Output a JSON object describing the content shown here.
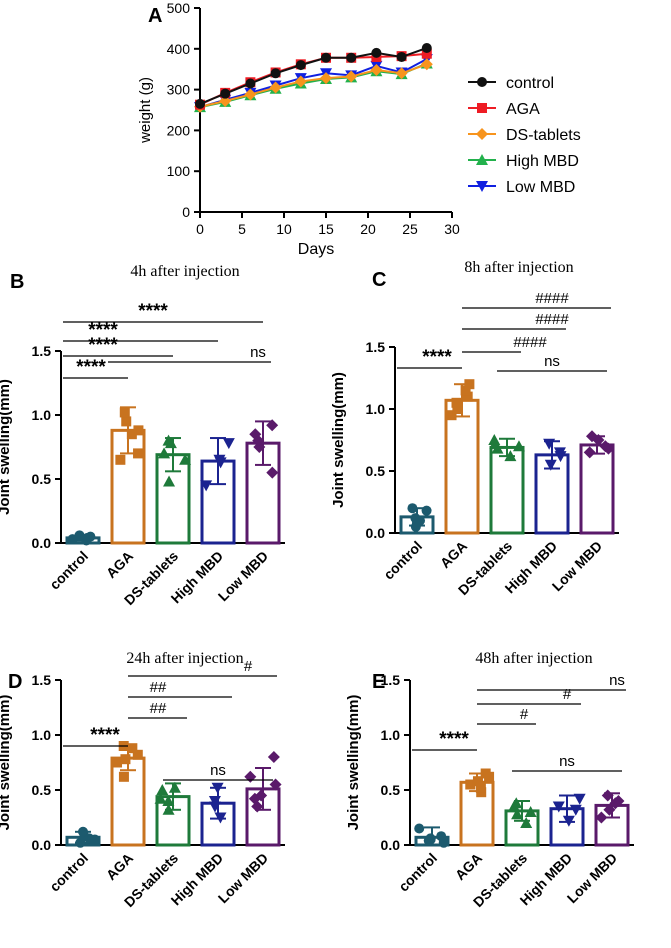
{
  "colors": {
    "control": "#1c5a6e",
    "AGA": "#c8731f",
    "DS-tablets": "#1e7a3a",
    "High MBD": "#1b2390",
    "Low MBD": "#5a1a6a"
  },
  "line_colors": {
    "control": "#111111",
    "AGA": "#ee1c24",
    "DS-tablets": "#f7941d",
    "High MBD": "#22b14c",
    "Low MBD": "#1020e0"
  },
  "chart_data": [
    {
      "panel": "A",
      "type": "line",
      "title": "",
      "xlabel": "Days",
      "ylabel": "weight (g)",
      "xlim": [
        0,
        30
      ],
      "ylim": [
        0,
        500
      ],
      "xticks": [
        0,
        5,
        10,
        15,
        20,
        25,
        30
      ],
      "yticks": [
        0,
        100,
        200,
        300,
        400,
        500
      ],
      "x": [
        0,
        3,
        6,
        9,
        12,
        15,
        18,
        21,
        24,
        27
      ],
      "series": [
        {
          "name": "control",
          "marker": "circle",
          "values": [
            265,
            290,
            315,
            340,
            360,
            378,
            378,
            390,
            380,
            402
          ]
        },
        {
          "name": "AGA",
          "marker": "square",
          "values": [
            263,
            292,
            318,
            342,
            362,
            378,
            378,
            380,
            382,
            388
          ]
        },
        {
          "name": "DS-tablets",
          "marker": "diamond",
          "values": [
            258,
            272,
            288,
            305,
            320,
            328,
            332,
            348,
            340,
            362
          ]
        },
        {
          "name": "High MBD",
          "marker": "triangle-up",
          "values": [
            257,
            270,
            286,
            302,
            315,
            326,
            330,
            345,
            338,
            364
          ]
        },
        {
          "name": "Low MBD",
          "marker": "triangle-down",
          "values": [
            257,
            275,
            292,
            310,
            328,
            340,
            335,
            358,
            342,
            375
          ]
        }
      ],
      "legend": [
        "control",
        "AGA",
        "DS-tablets",
        "High MBD",
        "Low MBD"
      ],
      "legend_position": "right"
    },
    {
      "panel": "B",
      "type": "bar",
      "title": "4h after injection",
      "ylabel": "Joint swelling(mm)",
      "ylim": [
        0,
        1.5
      ],
      "yticks": [
        "0.0",
        "0.5",
        "1.0",
        "1.5"
      ],
      "categories": [
        "control",
        "AGA",
        "DS-tablets",
        "High MBD",
        "Low MBD"
      ],
      "values": [
        0.04,
        0.88,
        0.69,
        0.64,
        0.78
      ],
      "errors": [
        0.02,
        0.18,
        0.13,
        0.18,
        0.17
      ],
      "points": [
        [
          0.02,
          0.03,
          0.04,
          0.05,
          0.06
        ],
        [
          0.65,
          0.7,
          0.88,
          0.95,
          1.02,
          0.85
        ],
        [
          0.48,
          0.65,
          0.78,
          0.7,
          0.8
        ],
        [
          0.45,
          0.63,
          0.78,
          0.65
        ],
        [
          0.55,
          0.75,
          0.85,
          0.92,
          0.8
        ]
      ],
      "comparisons": [
        {
          "from": 0,
          "to": 1,
          "label": "****"
        },
        {
          "from": 0,
          "to": 2,
          "label": "****"
        },
        {
          "from": 0,
          "to": 3,
          "label": "****"
        },
        {
          "from": 0,
          "to": 4,
          "label": "****"
        },
        {
          "from": 1,
          "to": 4,
          "label": "ns",
          "level": 0
        }
      ]
    },
    {
      "panel": "C",
      "type": "bar",
      "title": "8h after injection",
      "ylabel": "Joint swelling(mm)",
      "ylim": [
        0,
        1.5
      ],
      "yticks": [
        "0.0",
        "0.5",
        "1.0",
        "1.5"
      ],
      "categories": [
        "control",
        "AGA",
        "DS-tablets",
        "High MBD",
        "Low MBD"
      ],
      "values": [
        0.13,
        1.07,
        0.69,
        0.63,
        0.71
      ],
      "errors": [
        0.07,
        0.13,
        0.07,
        0.11,
        0.07
      ],
      "points": [
        [
          0.05,
          0.08,
          0.12,
          0.18,
          0.2,
          0.1
        ],
        [
          0.95,
          1.05,
          1.1,
          1.15,
          1.2,
          1.0
        ],
        [
          0.62,
          0.68,
          0.72,
          0.75,
          0.7
        ],
        [
          0.55,
          0.62,
          0.72,
          0.65
        ],
        [
          0.65,
          0.7,
          0.75,
          0.78,
          0.68
        ]
      ],
      "comparisons": [
        {
          "from": 0,
          "to": 1,
          "label": "****"
        },
        {
          "from": 1,
          "to": 2,
          "label": "####"
        },
        {
          "from": 1,
          "to": 3,
          "label": "####"
        },
        {
          "from": 1,
          "to": 4,
          "label": "####"
        },
        {
          "from": 2,
          "to": 4,
          "label": "ns",
          "level": 0
        }
      ]
    },
    {
      "panel": "D",
      "type": "bar",
      "title": "24h after injection",
      "ylabel": "Joint swelling(mm)",
      "ylim": [
        0,
        1.5
      ],
      "yticks": [
        "0.0",
        "0.5",
        "1.0",
        "1.5"
      ],
      "categories": [
        "control",
        "AGA",
        "DS-tablets",
        "High MBD",
        "Low MBD"
      ],
      "values": [
        0.07,
        0.79,
        0.44,
        0.38,
        0.51
      ],
      "errors": [
        0.05,
        0.11,
        0.12,
        0.14,
        0.19
      ],
      "points": [
        [
          0.02,
          0.05,
          0.08,
          0.12,
          0.04,
          0.06
        ],
        [
          0.62,
          0.75,
          0.82,
          0.88,
          0.9,
          0.78
        ],
        [
          0.32,
          0.42,
          0.5,
          0.52,
          0.4
        ],
        [
          0.25,
          0.35,
          0.52,
          0.4
        ],
        [
          0.35,
          0.45,
          0.55,
          0.62,
          0.8,
          0.42
        ]
      ],
      "comparisons": [
        {
          "from": 0,
          "to": 1,
          "label": "****"
        },
        {
          "from": 1,
          "to": 2,
          "label": "##"
        },
        {
          "from": 1,
          "to": 3,
          "label": "##"
        },
        {
          "from": 1,
          "to": 4,
          "label": "#"
        },
        {
          "from": 2,
          "to": 4,
          "label": "ns",
          "level": 0
        }
      ]
    },
    {
      "panel": "E",
      "type": "bar",
      "title": "48h after injection",
      "ylabel": "Joint swelling(mm)",
      "ylim": [
        0,
        1.5
      ],
      "yticks": [
        "0.0",
        "0.5",
        "1.0",
        "1.5"
      ],
      "categories": [
        "control",
        "AGA",
        "DS-tablets",
        "High MBD",
        "Low MBD"
      ],
      "values": [
        0.07,
        0.57,
        0.31,
        0.33,
        0.36
      ],
      "errors": [
        0.09,
        0.08,
        0.09,
        0.12,
        0.11
      ],
      "points": [
        [
          0.02,
          0.04,
          0.06,
          0.15,
          0.08,
          0.05
        ],
        [
          0.48,
          0.52,
          0.55,
          0.62,
          0.65,
          0.58
        ],
        [
          0.2,
          0.28,
          0.35,
          0.38,
          0.3
        ],
        [
          0.22,
          0.32,
          0.42,
          0.35
        ],
        [
          0.25,
          0.32,
          0.4,
          0.45,
          0.38
        ]
      ],
      "comparisons": [
        {
          "from": 0,
          "to": 1,
          "label": "****"
        },
        {
          "from": 1,
          "to": 2,
          "label": "#"
        },
        {
          "from": 1,
          "to": 3,
          "label": "#"
        },
        {
          "from": 1,
          "to": 4,
          "label": "ns"
        },
        {
          "from": 2,
          "to": 4,
          "label": "ns",
          "level": 0
        }
      ]
    }
  ]
}
